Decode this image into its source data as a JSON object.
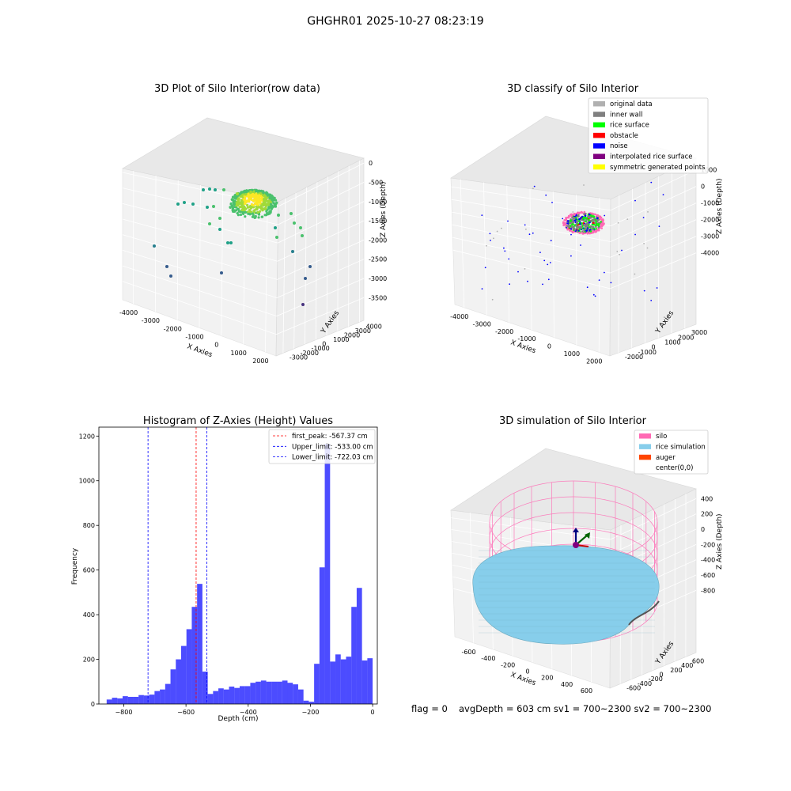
{
  "suptitle": "GHGHR01 2025-10-27 08:23:19",
  "chart_data": [
    {
      "type": "scatter",
      "title": "3D Plot of Silo Interior(row data)",
      "xlabel": "X Axies",
      "ylabel": "Y Axies",
      "zlabel": "Z Axies (Depth)",
      "x_ticks": [
        "-4000",
        "-3000",
        "-2000",
        "-1000",
        "0",
        "1000",
        "2000"
      ],
      "y_ticks": [
        "-3000",
        "-2000",
        "-1000",
        "0",
        "1000",
        "2000",
        "3000",
        "4000"
      ],
      "z_ticks": [
        "0",
        "-500",
        "-1000",
        "-1500",
        "-2000",
        "-2500",
        "-3000",
        "-3500"
      ],
      "xlim": [
        -4300,
        2500
      ],
      "ylim": [
        -3300,
        4400
      ],
      "zlim": [
        -3800,
        200
      ],
      "colormap": "viridis"
    },
    {
      "type": "scatter",
      "title": "3D classify of Silo Interior",
      "xlabel": "X Axies",
      "ylabel": "Y Axies",
      "zlabel": "Z Axies (Depth)",
      "x_ticks": [
        "-4000",
        "-3000",
        "-2000",
        "-1000",
        "0",
        "1000",
        "2000"
      ],
      "y_ticks": [
        "-2000",
        "-1000",
        "0",
        "1000",
        "2000",
        "3000"
      ],
      "z_ticks": [
        "1000",
        "0",
        "-1000",
        "-2000",
        "-3000",
        "-4000"
      ],
      "legend": [
        {
          "label": "original data",
          "color": "#b0b0b0"
        },
        {
          "label": "inner wall",
          "color": "#808080"
        },
        {
          "label": "rice surface",
          "color": "#00ff00"
        },
        {
          "label": "obstacle",
          "color": "#ff0000"
        },
        {
          "label": "noise",
          "color": "#0000ff"
        },
        {
          "label": "interpolated rice surface",
          "color": "#800080"
        },
        {
          "label": "symmetric generated points",
          "color": "#ffff00"
        }
      ],
      "legend_loc": "upper right"
    },
    {
      "type": "bar",
      "title": "Histogram of Z-Axies (Height) Values",
      "xlabel": "Depth (cm)",
      "ylabel": "Frequency",
      "xlim": [
        -880,
        15
      ],
      "ylim": [
        0,
        1240
      ],
      "x_ticks": [
        -800,
        -600,
        -400,
        -200,
        0
      ],
      "y_ticks": [
        0,
        200,
        400,
        600,
        800,
        1000,
        1200
      ],
      "bar_color": "#0000ff",
      "bin_start": -855,
      "bin_width": 17.1,
      "values": [
        20,
        28,
        25,
        35,
        32,
        32,
        40,
        38,
        42,
        58,
        65,
        90,
        155,
        200,
        260,
        335,
        435,
        538,
        145,
        45,
        58,
        70,
        65,
        78,
        72,
        80,
        80,
        95,
        100,
        105,
        100,
        100,
        100,
        105,
        95,
        88,
        65,
        15,
        10,
        180,
        612,
        1165,
        190,
        222,
        200,
        212,
        435,
        520,
        195,
        205
      ],
      "vlines": [
        {
          "label": "first_peak: -567.37 cm",
          "x": -567.37,
          "color": "#ff0000"
        },
        {
          "label": "Upper_limit: -533.00 cm",
          "x": -533.0,
          "color": "#0000ff"
        },
        {
          "label": "Lower_limit: -722.03 cm",
          "x": -722.03,
          "color": "#0000ff"
        }
      ],
      "legend_loc": "upper right"
    },
    {
      "type": "surface",
      "title": "3D simulation of Silo Interior",
      "xlabel": "X Axies",
      "ylabel": "Y Axies",
      "zlabel": "Z Axies (Depth)",
      "x_ticks": [
        "-600",
        "-400",
        "-200",
        "0",
        "200",
        "400",
        "600"
      ],
      "y_ticks": [
        "-600",
        "-400",
        "-200",
        "0",
        "200",
        "400",
        "600"
      ],
      "z_ticks": [
        "400",
        "200",
        "0",
        "-200",
        "-400",
        "-600",
        "-800"
      ],
      "legend": [
        {
          "label": "silo",
          "color": "#ff69b4"
        },
        {
          "label": "rice simulation",
          "color": "#87ceeb"
        },
        {
          "label": "auger",
          "color": "#ff4500"
        },
        {
          "label": "center(0,0)",
          "color": ""
        }
      ],
      "legend_loc": "upper right"
    }
  ],
  "footer": {
    "flag": "flag = 0",
    "avg": "avgDepth = 603 cm  sv1 = 700~2300  sv2 = 700~2300"
  }
}
